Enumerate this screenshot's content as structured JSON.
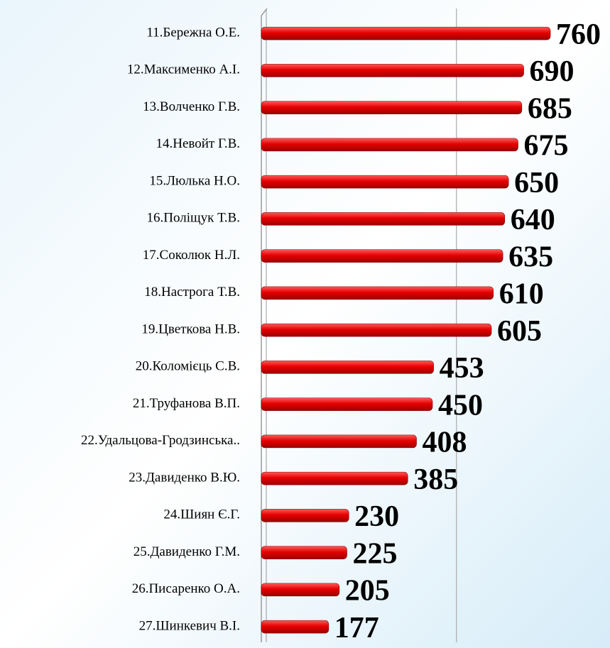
{
  "chart_data": {
    "type": "bar",
    "orientation": "horizontal",
    "categories": [
      "11.Бережна О.Е.",
      "12.Максименко А.І.",
      "13.Волченко Г.В.",
      "14.Невойт Г.В.",
      "15.Люлька Н.О.",
      "16.Поліщук Т.В.",
      "17.Соколюк Н.Л.",
      "18.Настрога Т.В.",
      "19.Цветкова Н.В.",
      "20.Коломієць С.В.",
      "21.Труфанова В.П.",
      "22.Удальцова-Гродзинська..",
      "23.Давиденко В.Ю.",
      "24.Шиян Є.Г.",
      "25.Давиденко Г.М.",
      "26.Писаренко О.А.",
      "27.Шинкевич В.І."
    ],
    "values": [
      760,
      690,
      685,
      675,
      650,
      640,
      635,
      610,
      605,
      453,
      450,
      408,
      385,
      230,
      225,
      205,
      177
    ],
    "color": "#e60000",
    "xlim": [
      0,
      900
    ],
    "xticks": [
      0,
      500
    ],
    "grid": true
  }
}
